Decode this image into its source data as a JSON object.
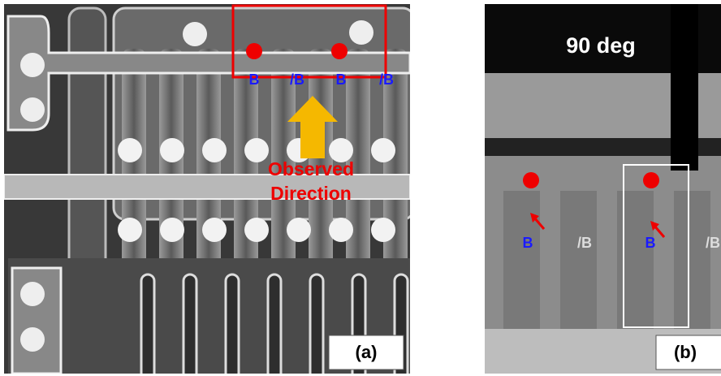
{
  "panel_a": {
    "labels": [
      "B",
      "/B",
      "B",
      "/B"
    ],
    "annotation": [
      "Observed",
      "Direction"
    ],
    "caption": "(a)"
  },
  "panel_b": {
    "title": "90 deg",
    "labels": [
      "B",
      "/B",
      "B",
      "/B"
    ],
    "caption": "(b)"
  }
}
